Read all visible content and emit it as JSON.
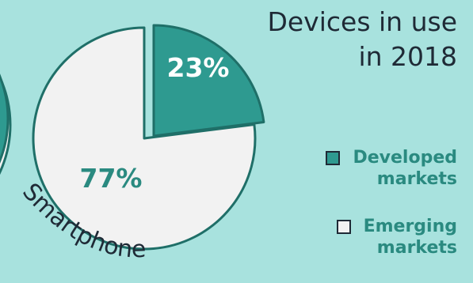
{
  "chart_data": {
    "type": "pie",
    "title": [
      "Devices in use",
      "in 2018"
    ],
    "category_label": "Smartphones",
    "slices": [
      {
        "name": "Developed markets",
        "value": 23,
        "label": "23%",
        "color": "#2e9a90"
      },
      {
        "name": "Emerging markets",
        "value": 77,
        "label": "77%",
        "color": "#f2f2f2"
      }
    ],
    "legend": [
      {
        "lines": [
          "Developed",
          "markets"
        ],
        "color": "#2e9a90"
      },
      {
        "lines": [
          "Emerging",
          "markets"
        ],
        "color": "#f2f2f2"
      }
    ],
    "legend_placement": "right"
  },
  "colors": {
    "background": "#a8e2de",
    "outline": "#1f6f68",
    "label_text": "#2a8a80",
    "title_text": "#1f2a36"
  }
}
